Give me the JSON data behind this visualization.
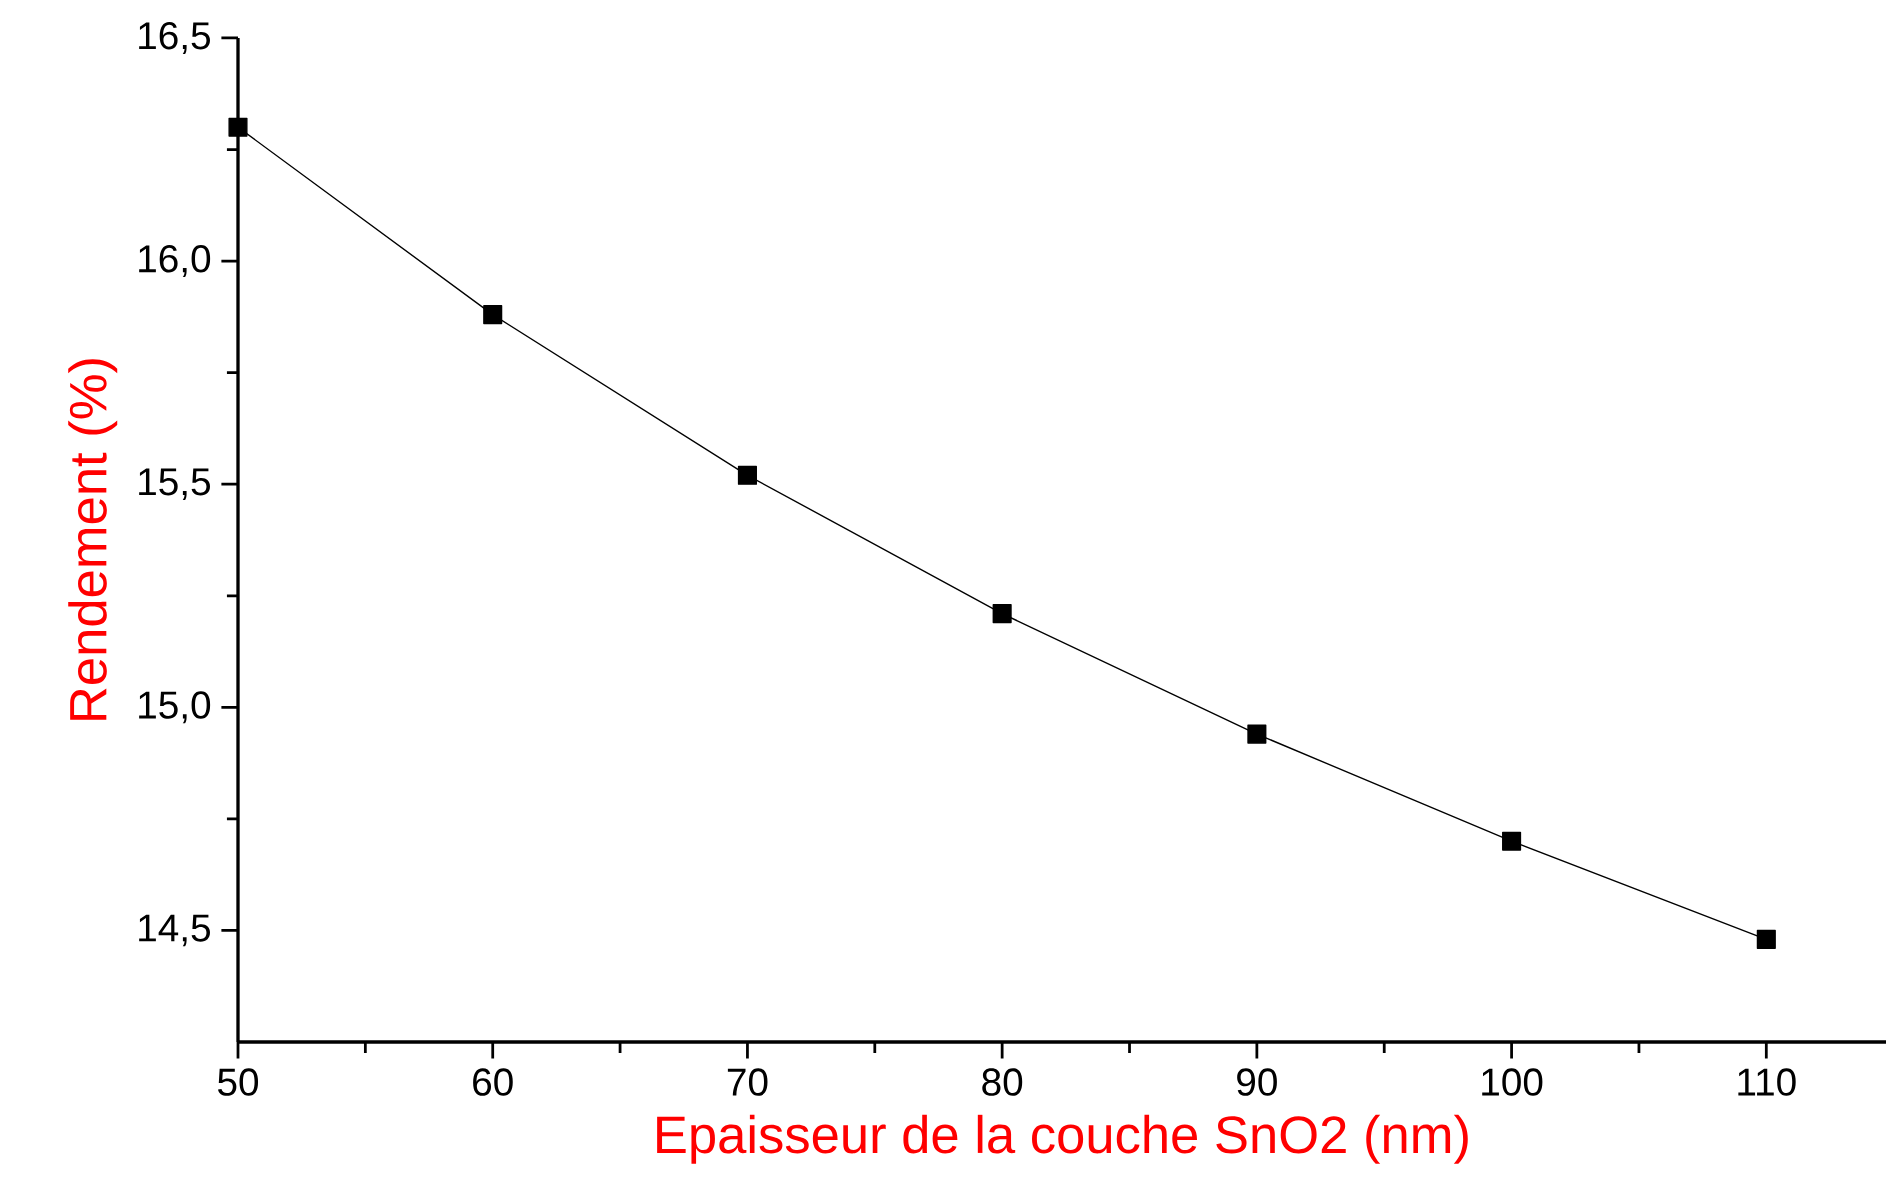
{
  "chart_data": {
    "type": "line",
    "xlabel": "Epaisseur de la couche SnO2 (nm)",
    "ylabel": "Rendement (%)",
    "x": [
      50,
      60,
      70,
      80,
      90,
      100,
      110
    ],
    "series": [
      {
        "color": "#000000",
        "values": [
          16.3,
          15.88,
          15.52,
          15.21,
          14.94,
          14.7,
          14.48
        ]
      }
    ],
    "xlim": [
      50,
      114.7
    ],
    "ylim": [
      14.25,
      16.5
    ],
    "xticks": [
      50,
      60,
      70,
      80,
      90,
      100,
      110
    ],
    "yticks": [
      {
        "value": 14.5,
        "label": "14,5"
      },
      {
        "value": 15.0,
        "label": "15,0"
      },
      {
        "value": 15.5,
        "label": "15,5"
      },
      {
        "value": 16.0,
        "label": "16,0"
      },
      {
        "value": 16.5,
        "label": "16,5"
      }
    ],
    "marker": "square",
    "line_style": "solid"
  }
}
